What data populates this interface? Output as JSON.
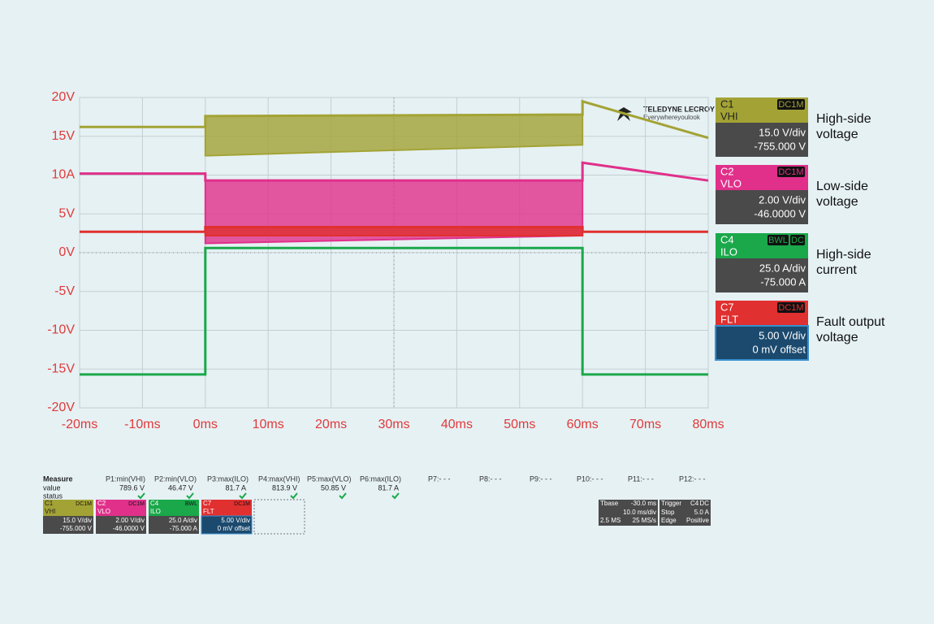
{
  "chart_data": {
    "type": "line",
    "xlim": [
      -20,
      80
    ],
    "xticks": [
      {
        "value": -20,
        "label": "-20ms"
      },
      {
        "value": -10,
        "label": "-10ms"
      },
      {
        "value": 0,
        "label": "0ms"
      },
      {
        "value": 10,
        "label": "10ms"
      },
      {
        "value": 20,
        "label": "20ms"
      },
      {
        "value": 30,
        "label": "30ms"
      },
      {
        "value": 40,
        "label": "40ms"
      },
      {
        "value": 50,
        "label": "50ms"
      },
      {
        "value": 60,
        "label": "60ms"
      },
      {
        "value": 70,
        "label": "70ms"
      },
      {
        "value": 80,
        "label": "80ms"
      }
    ],
    "ylim": [
      -20,
      20
    ],
    "yticks": [
      {
        "value": 20,
        "label": "20V"
      },
      {
        "value": 15,
        "label": "15V"
      },
      {
        "value": 10,
        "label": "10A"
      },
      {
        "value": 5,
        "label": "5V"
      },
      {
        "value": 0,
        "label": "0V"
      },
      {
        "value": -5,
        "label": "-5V"
      },
      {
        "value": -10,
        "label": "-10V"
      },
      {
        "value": -15,
        "label": "-15V"
      },
      {
        "value": -20,
        "label": "-20V"
      }
    ],
    "grid": true,
    "series": [
      {
        "name": "VHI",
        "color": "#a3a335",
        "x": [
          -20,
          0,
          0,
          60,
          60,
          80
        ],
        "values": [
          16.2,
          16.2,
          17.6,
          17.8,
          19.5,
          14.8
        ],
        "lower": [
          16.2,
          16.2,
          12.5,
          13.9,
          19.5,
          14.8
        ]
      },
      {
        "name": "VLO",
        "color": "#e0308a",
        "x": [
          -20,
          0,
          0,
          60,
          60,
          80
        ],
        "values": [
          10.2,
          10.2,
          9.3,
          9.3,
          11.6,
          9.3
        ],
        "lower": [
          10.2,
          10.2,
          1.2,
          2.2,
          11.6,
          9.3
        ]
      },
      {
        "name": "FLT",
        "color": "#e03030",
        "x": [
          -20,
          0,
          0,
          60,
          60,
          80
        ],
        "values": [
          2.7,
          2.7,
          3.3,
          3.3,
          2.7,
          2.7
        ],
        "lower": [
          2.7,
          2.7,
          2.2,
          2.2,
          2.7,
          2.7
        ]
      },
      {
        "name": "ILO",
        "color": "#1aa84a",
        "x": [
          -20,
          0,
          0,
          60,
          60,
          80
        ],
        "values": [
          -15.7,
          -15.7,
          0.6,
          0.6,
          -15.7,
          -15.7
        ],
        "lower": [
          -15.7,
          -15.7,
          0.6,
          0.6,
          -15.7,
          -15.7
        ]
      }
    ]
  },
  "logo": {
    "brand": "TELEDYNE LECROY",
    "tagline": "Everywhereyoulook"
  },
  "channels": [
    {
      "id": "C1",
      "name": "VHI",
      "coupling": [
        "DC1M"
      ],
      "color": "#a3a335",
      "text": "#222222",
      "scale": "15.0 V/div",
      "offset": "-755.000 V",
      "annotation": [
        "High-side",
        "voltage"
      ]
    },
    {
      "id": "C2",
      "name": "VLO",
      "coupling": [
        "DC1M"
      ],
      "color": "#e0308a",
      "text": "#ffffff",
      "scale": "2.00 V/div",
      "offset": "-46.0000 V",
      "annotation": [
        "Low-side",
        "voltage"
      ]
    },
    {
      "id": "C4",
      "name": "ILO",
      "coupling": [
        "BWL",
        "DC"
      ],
      "color": "#1aa84a",
      "text": "#ffffff",
      "scale": "25.0 A/div",
      "offset": "-75.000 A",
      "annotation": [
        "High-side",
        "current"
      ]
    },
    {
      "id": "C7",
      "name": "FLT",
      "coupling": [
        "DC1M"
      ],
      "color": "#e03030",
      "text": "#ffffff",
      "scale": "5.00 V/div",
      "offset": "0 mV offset",
      "annotation": [
        "Fault output",
        "voltage"
      ]
    }
  ],
  "measure": {
    "title": "Measure",
    "row_labels": [
      "value",
      "status"
    ],
    "params": [
      {
        "label": "P1:min(VHI)",
        "value": "789.6 V"
      },
      {
        "label": "P2:min(VLO)",
        "value": "46.47 V"
      },
      {
        "label": "P3:max(ILO)",
        "value": "81.7 A"
      },
      {
        "label": "P4:max(VHI)",
        "value": "813.9 V"
      },
      {
        "label": "P5:max(VLO)",
        "value": "50.85 V"
      },
      {
        "label": "P6:max(ILO)",
        "value": "81.7 A"
      },
      {
        "label": "P7:- - -"
      },
      {
        "label": "P8:- - -"
      },
      {
        "label": "P9:- - -"
      },
      {
        "label": "P10:- - -"
      },
      {
        "label": "P11:- - -"
      },
      {
        "label": "P12:- - -"
      }
    ]
  },
  "timebase": {
    "title": "Tbase",
    "delay": "-30.0 ms",
    "scale": "10.0 ms/div",
    "points": "2.5 MS",
    "rate": "25 MS/s"
  },
  "trigger": {
    "title": "Trigger",
    "source": "C4",
    "coupling": "DC",
    "mode": "Stop",
    "level": "5.0 A",
    "kind": "Edge",
    "slope": "Positive"
  }
}
